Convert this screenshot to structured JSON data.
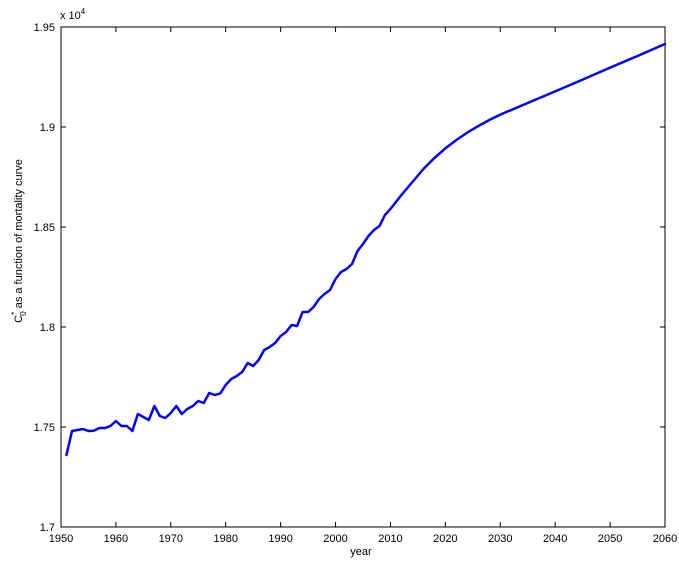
{
  "chart_data": {
    "type": "line",
    "xlabel": "year",
    "ylabel": {
      "main": "C",
      "superscript": "*",
      "subscript": "0",
      "rest": " as a function of mortality curve"
    },
    "y_multiplier": {
      "base": "x 10",
      "exponent": "4"
    },
    "xlim": [
      1950,
      2060
    ],
    "ylim": [
      17000,
      19500
    ],
    "xticks": [
      1950,
      1960,
      1970,
      1980,
      1990,
      2000,
      2010,
      2020,
      2030,
      2040,
      2050,
      2060
    ],
    "xtick_labels": [
      "1950",
      "1960",
      "1970",
      "1980",
      "1990",
      "2000",
      "2010",
      "2020",
      "2030",
      "2040",
      "2050",
      "2060"
    ],
    "yticks": [
      17000,
      17500,
      18000,
      18500,
      19000,
      19500
    ],
    "ytick_labels": [
      "1.7",
      "1.75",
      "1.8",
      "1.85",
      "1.9",
      "1.95"
    ],
    "grid": false,
    "line_color": "#0000ff",
    "series": [
      {
        "x": [
          1951,
          1952,
          1953,
          1954,
          1955,
          1956,
          1957,
          1958,
          1959,
          1960,
          1961,
          1962,
          1963,
          1964,
          1965,
          1966,
          1967,
          1968,
          1969,
          1970,
          1971,
          1972,
          1973,
          1974,
          1975,
          1976,
          1977,
          1978,
          1979,
          1980,
          1981,
          1982,
          1983,
          1984,
          1985,
          1986,
          1987,
          1988,
          1989,
          1990,
          1991,
          1992,
          1993,
          1994,
          1995,
          1996,
          1997,
          1998,
          1999,
          2000,
          2001,
          2002,
          2003,
          2004,
          2005,
          2006,
          2007,
          2008,
          2009,
          2010,
          2012,
          2014,
          2016,
          2018,
          2020,
          2022,
          2024,
          2026,
          2028,
          2030,
          2035,
          2040,
          2045,
          2050,
          2055,
          2060
        ],
        "y": [
          17360,
          17480,
          17485,
          17490,
          17480,
          17482,
          17495,
          17495,
          17505,
          17530,
          17505,
          17505,
          17480,
          17565,
          17550,
          17535,
          17605,
          17555,
          17545,
          17570,
          17605,
          17565,
          17590,
          17605,
          17630,
          17620,
          17670,
          17660,
          17668,
          17710,
          17740,
          17755,
          17775,
          17820,
          17805,
          17835,
          17885,
          17900,
          17920,
          17955,
          17975,
          18010,
          18005,
          18075,
          18075,
          18100,
          18140,
          18165,
          18185,
          18240,
          18275,
          18290,
          18315,
          18380,
          18415,
          18455,
          18485,
          18505,
          18560,
          18590,
          18660,
          18725,
          18790,
          18845,
          18893,
          18935,
          18972,
          19005,
          19035,
          19062,
          19120,
          19178,
          19237,
          19297,
          19355,
          19415
        ]
      }
    ]
  }
}
